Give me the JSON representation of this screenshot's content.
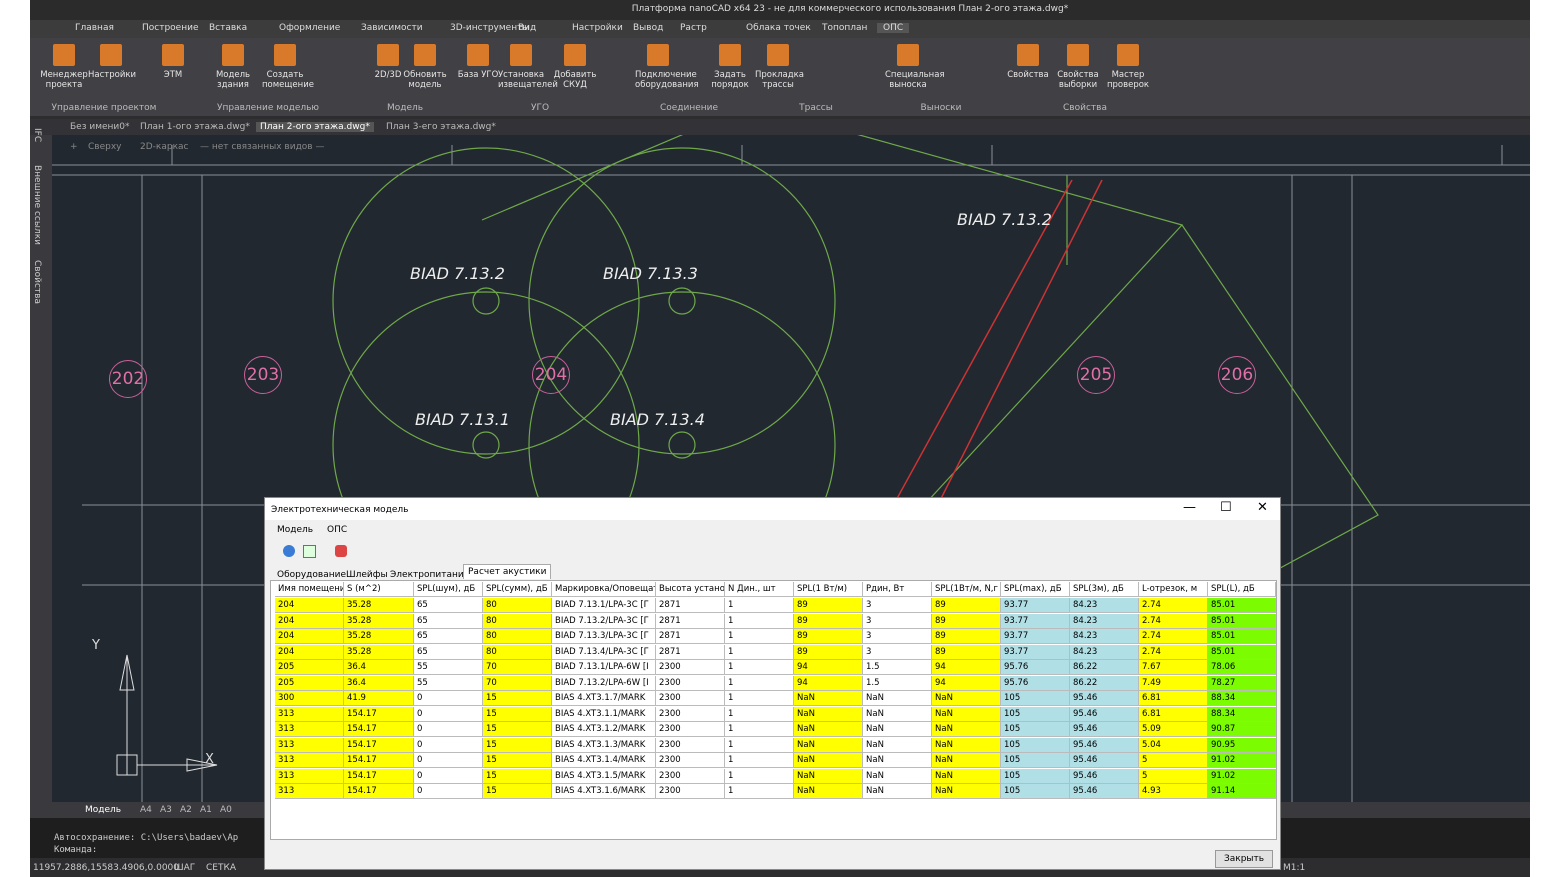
{
  "window": {
    "title": "Платформа nanoCAD x64 23 - не для коммерческого использования План 2-ого этажа.dwg*"
  },
  "ribbon": {
    "tabs": [
      "Главная",
      "Построение",
      "Вставка",
      "Оформление",
      "Зависимости",
      "3D-инструменты",
      "Вид",
      "Настройки",
      "Вывод",
      "Растр",
      "Облака точек",
      "Топоплан",
      "ОПС"
    ],
    "groups": [
      {
        "label": "Управление проектом",
        "buttons": [
          "Менеджер проекта",
          "Настройки",
          "ЭТМ"
        ]
      },
      {
        "label": "Управление моделью",
        "buttons": [
          "Модель здания",
          "Создать помещение"
        ]
      },
      {
        "label": "Модель",
        "buttons": [
          "2D/3D",
          "Обновить модель"
        ]
      },
      {
        "label": "УГО",
        "buttons": [
          "База УГО",
          "Установка извещателей",
          "Добавить СКУД"
        ]
      },
      {
        "label": "Соединение",
        "buttons": [
          "Подключение оборудования",
          "Задать порядок"
        ]
      },
      {
        "label": "Трассы",
        "buttons": [
          "Прокладка трассы"
        ]
      },
      {
        "label": "Выноски",
        "buttons": [
          "Специальная выноска"
        ]
      },
      {
        "label": "Свойства",
        "buttons": [
          "Свойства",
          "Свойства выборки",
          "Мастер проверок"
        ]
      }
    ]
  },
  "doc_tabs": [
    "Без имени0*",
    "План 1-ого этажа.dwg*",
    "План 2-ого этажа.dwg*",
    "План 3-его этажа.dwg*"
  ],
  "view_controls": [
    "+",
    "Сверху",
    "2D-каркас",
    "— нет связанных видов —"
  ],
  "side_panel": [
    "IFC",
    "Внешние ссылки",
    "Свойства"
  ],
  "drawing": {
    "labels": [
      "BIAD 7.13.2",
      "BIAD 7.13.3",
      "BIAD 7.13.1",
      "BIAD 7.13.4",
      "BIAD 7.13.2"
    ],
    "rooms": [
      "202",
      "203",
      "204",
      "205",
      "206"
    ],
    "axes": [
      "Y",
      "X"
    ]
  },
  "layout_tabs": [
    "Модель",
    "A4",
    "A3",
    "A2",
    "A1",
    "A0"
  ],
  "command_line": [
    "Автосохранение: C:\\Users\\badaev\\Ap",
    "Команда:"
  ],
  "status": {
    "coords": "11957.2886,15583.4906,0.0000",
    "items": [
      "ШАГ",
      "СЕТКА"
    ],
    "scale": "M1:1"
  },
  "dialog": {
    "title": "Электротехническая модель",
    "menu": [
      "Модель",
      "ОПС"
    ],
    "tabs": [
      "Оборудование",
      "Шлейфы",
      "Электропитание",
      "Расчет акустики"
    ],
    "table": {
      "headers": [
        "Имя помещени",
        "S (м^2)",
        "SPL(шум), дБ",
        "SPL(сумм), дБ",
        "Маркировка/Оповещат",
        "Высота устано",
        "N Дин., шт",
        "SPL(1 Вт/м)",
        "Рдин, Вт",
        "SPL(1Вт/м, N,г",
        "SPL(max), дБ",
        "SPL(3м), дБ",
        "L-отрезок, м",
        "SPL(L), дБ"
      ],
      "rows": [
        [
          "204",
          "35.28",
          "65",
          "80",
          "BIAD 7.13.1/LPA-3C [Г",
          "2871",
          "1",
          "89",
          "3",
          "89",
          "93.77",
          "84.23",
          "2.74",
          "85.01"
        ],
        [
          "204",
          "35.28",
          "65",
          "80",
          "BIAD 7.13.2/LPA-3C [Г",
          "2871",
          "1",
          "89",
          "3",
          "89",
          "93.77",
          "84.23",
          "2.74",
          "85.01"
        ],
        [
          "204",
          "35.28",
          "65",
          "80",
          "BIAD 7.13.3/LPA-3C [Г",
          "2871",
          "1",
          "89",
          "3",
          "89",
          "93.77",
          "84.23",
          "2.74",
          "85.01"
        ],
        [
          "204",
          "35.28",
          "65",
          "80",
          "BIAD 7.13.4/LPA-3C [Г",
          "2871",
          "1",
          "89",
          "3",
          "89",
          "93.77",
          "84.23",
          "2.74",
          "85.01"
        ],
        [
          "205",
          "36.4",
          "55",
          "70",
          "BIAD 7.13.1/LPA-6W [I",
          "2300",
          "1",
          "94",
          "1.5",
          "94",
          "95.76",
          "86.22",
          "7.67",
          "78.06"
        ],
        [
          "205",
          "36.4",
          "55",
          "70",
          "BIAD 7.13.2/LPA-6W [I",
          "2300",
          "1",
          "94",
          "1.5",
          "94",
          "95.76",
          "86.22",
          "7.49",
          "78.27"
        ],
        [
          "300",
          "41.9",
          "0",
          "15",
          "BIAS 4.XT3.1.7/MARK",
          "2300",
          "1",
          "NaN",
          "NaN",
          "NaN",
          "105",
          "95.46",
          "6.81",
          "88.34"
        ],
        [
          "313",
          "154.17",
          "0",
          "15",
          "BIAS 4.XT3.1.1/MARK",
          "2300",
          "1",
          "NaN",
          "NaN",
          "NaN",
          "105",
          "95.46",
          "6.81",
          "88.34"
        ],
        [
          "313",
          "154.17",
          "0",
          "15",
          "BIAS 4.XT3.1.2/MARK",
          "2300",
          "1",
          "NaN",
          "NaN",
          "NaN",
          "105",
          "95.46",
          "5.09",
          "90.87"
        ],
        [
          "313",
          "154.17",
          "0",
          "15",
          "BIAS 4.XT3.1.3/MARK",
          "2300",
          "1",
          "NaN",
          "NaN",
          "NaN",
          "105",
          "95.46",
          "5.04",
          "90.95"
        ],
        [
          "313",
          "154.17",
          "0",
          "15",
          "BIAS 4.XT3.1.4/MARK",
          "2300",
          "1",
          "NaN",
          "NaN",
          "NaN",
          "105",
          "95.46",
          "5",
          "91.02"
        ],
        [
          "313",
          "154.17",
          "0",
          "15",
          "BIAS 4.XT3.1.5/MARK",
          "2300",
          "1",
          "NaN",
          "NaN",
          "NaN",
          "105",
          "95.46",
          "5",
          "91.02"
        ],
        [
          "313",
          "154.17",
          "0",
          "15",
          "BIAS 4.XT3.1.6/MARK",
          "2300",
          "1",
          "NaN",
          "NaN",
          "NaN",
          "105",
          "95.46",
          "4.93",
          "91.14"
        ]
      ]
    },
    "close": "Закрыть"
  }
}
